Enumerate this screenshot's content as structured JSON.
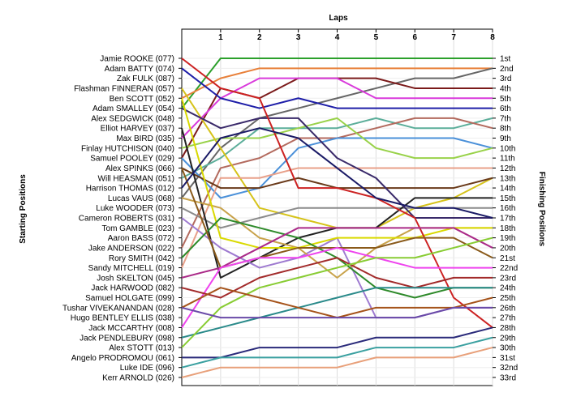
{
  "chart_data": {
    "type": "line",
    "title": "",
    "top_axis_label": "Laps",
    "left_axis_label": "Starting Positions",
    "right_axis_label": "Finishing Positions",
    "x": [
      0,
      1,
      2,
      3,
      4,
      5,
      6,
      7,
      8
    ],
    "x_tick_labels": [
      "1",
      "2",
      "3",
      "4",
      "5",
      "6",
      "7",
      "8"
    ],
    "y_range": [
      1,
      33
    ],
    "grid": true,
    "drivers": [
      "Jamie ROOKE (077)",
      "Adam BATTY (074)",
      "Zak FULK (087)",
      "Flashman FINNERAN (057)",
      "Ben SCOTT (052)",
      "Adam SMALLEY (054)",
      "Alex SEDGWICK (048)",
      "Elliot HARVEY (037)",
      "Max BIRD (035)",
      "Finlay HUTCHISON (040)",
      "Samuel POOLEY (029)",
      "Alex SPINKS (066)",
      "Will HEASMAN (051)",
      "Harrison THOMAS (012)",
      "Lucas VAUS (068)",
      "Luke WOODER (073)",
      "Cameron ROBERTS (031)",
      "Tom GAMBLE (023)",
      "Aaron BASS (072)",
      "Jake ANDERSON (022)",
      "Rory SMITH (042)",
      "Sandy MITCHELL (019)",
      "Josh SKELTON (045)",
      "Jack HARWOOD (082)",
      "Samuel HOLGATE (099)",
      "Tushar VIVEKANANDAN (028)",
      "Hugo BENTLEY ELLIS (038)",
      "Jack MCCARTHY (008)",
      "Jack PENDLEBURY (098)",
      "Alex STOTT (013)",
      "Angelo PRODROMOU (061)",
      "Luke IDE (096)",
      "Kerr ARNOLD (026)"
    ],
    "finishing_labels": [
      "1st",
      "2nd",
      "3rd",
      "4th",
      "5th",
      "6th",
      "7th",
      "8th",
      "9th",
      "10th",
      "11th",
      "12th",
      "13th",
      "14th",
      "15th",
      "16th",
      "17th",
      "18th",
      "19th",
      "20th",
      "21st",
      "22nd",
      "23rd",
      "24th",
      "25th",
      "26th",
      "27th",
      "28th",
      "29th",
      "30th",
      "31st",
      "32nd",
      "33rd"
    ],
    "series": [
      {
        "color": "#2ca02c",
        "values": [
          6,
          1,
          1,
          1,
          1,
          1,
          1,
          1,
          1
        ]
      },
      {
        "color": "#e8803a",
        "values": [
          5,
          3,
          2,
          2,
          2,
          2,
          2,
          2,
          2
        ]
      },
      {
        "color": "#666666",
        "values": [
          15,
          10,
          7,
          6,
          5,
          4,
          3,
          3,
          2
        ]
      },
      {
        "color": "#7b1a1a",
        "values": [
          11,
          4,
          5,
          3,
          3,
          3,
          4,
          4,
          4
        ]
      },
      {
        "color": "#d93adb",
        "values": [
          9,
          5,
          3,
          3,
          3,
          5,
          5,
          5,
          5
        ]
      },
      {
        "color": "#1e1ea8",
        "values": [
          2,
          5,
          6,
          5,
          6,
          6,
          6,
          6,
          6
        ]
      },
      {
        "color": "#5cae9a",
        "values": [
          13,
          11,
          8,
          8,
          8,
          7,
          8,
          8,
          7
        ]
      },
      {
        "color": "#b36a5e",
        "values": [
          20,
          12,
          11,
          9,
          9,
          8,
          7,
          7,
          8
        ]
      },
      {
        "color": "#4a90d9",
        "values": [
          11,
          15,
          14,
          10,
          9,
          9,
          9,
          9,
          10
        ]
      },
      {
        "color": "#99d24a",
        "values": [
          10,
          9,
          9,
          8,
          7,
          10,
          11,
          11,
          10
        ]
      },
      {
        "color": "#d6c31a",
        "values": [
          4,
          10,
          16,
          17,
          18,
          18,
          16,
          15,
          13
        ]
      },
      {
        "color": "#e8a08a",
        "values": [
          22,
          13,
          13,
          12,
          12,
          12,
          12,
          12,
          12
        ]
      },
      {
        "color": "#6a3a1a",
        "values": [
          12,
          14,
          14,
          13,
          14,
          14,
          14,
          14,
          13
        ]
      },
      {
        "color": "#8b8b8b",
        "values": [
          16,
          18,
          17,
          16,
          16,
          16,
          16,
          16,
          16
        ]
      },
      {
        "color": "#222222",
        "values": [
          8,
          23,
          21,
          19,
          18,
          18,
          15,
          15,
          15
        ]
      },
      {
        "color": "#3a2a6a",
        "values": [
          6,
          8,
          7,
          7,
          11,
          13,
          17,
          17,
          17
        ]
      },
      {
        "color": "#9e7ad0",
        "values": [
          17,
          20,
          22,
          21,
          19,
          27,
          27,
          26,
          26
        ]
      },
      {
        "color": "#c8a24a",
        "values": [
          15,
          16,
          19,
          20,
          23,
          20,
          18,
          18,
          18
        ]
      },
      {
        "color": "#d9d900",
        "values": [
          5,
          19,
          20,
          20,
          19,
          19,
          19,
          18,
          18
        ]
      },
      {
        "color": "#cc2222",
        "values": [
          1,
          4,
          5,
          14,
          14,
          15,
          17,
          25,
          28
        ]
      },
      {
        "color": "#2e8a2a",
        "values": [
          21,
          17,
          18,
          19,
          21,
          24,
          25,
          24,
          24
        ]
      },
      {
        "color": "#aa2a88",
        "values": [
          23,
          22,
          20,
          18,
          18,
          18,
          18,
          18,
          20
        ]
      },
      {
        "color": "#8a5a1a",
        "values": [
          12,
          22,
          21,
          20,
          20,
          20,
          19,
          19,
          21
        ]
      },
      {
        "color": "#ee44ee",
        "values": [
          28,
          22,
          21,
          21,
          20,
          21,
          22,
          22,
          22
        ]
      },
      {
        "color": "#1a1a66",
        "values": [
          14,
          9,
          8,
          9,
          12,
          15,
          16,
          16,
          17
        ]
      },
      {
        "color": "#a22a2a",
        "values": [
          24,
          25,
          23,
          22,
          21,
          23,
          24,
          23,
          23
        ]
      },
      {
        "color": "#2a8a8a",
        "values": [
          29,
          28,
          27,
          26,
          25,
          24,
          24,
          24,
          24
        ]
      },
      {
        "color": "#88cc33",
        "values": [
          30,
          26,
          24,
          23,
          22,
          21,
          21,
          20,
          19
        ]
      },
      {
        "color": "#a5531a",
        "values": [
          26,
          24,
          25,
          26,
          27,
          26,
          26,
          26,
          25
        ]
      },
      {
        "color": "#6a4aa8",
        "values": [
          26,
          27,
          27,
          27,
          27,
          27,
          27,
          26,
          26
        ]
      },
      {
        "color": "#2a2a7a",
        "values": [
          31,
          31,
          30,
          30,
          30,
          29,
          29,
          29,
          28
        ]
      },
      {
        "color": "#3aa0a0",
        "values": [
          32,
          31,
          31,
          31,
          31,
          30,
          30,
          30,
          29
        ]
      },
      {
        "color": "#e8a07a",
        "values": [
          33,
          32,
          32,
          32,
          32,
          31,
          31,
          31,
          30
        ]
      }
    ]
  }
}
